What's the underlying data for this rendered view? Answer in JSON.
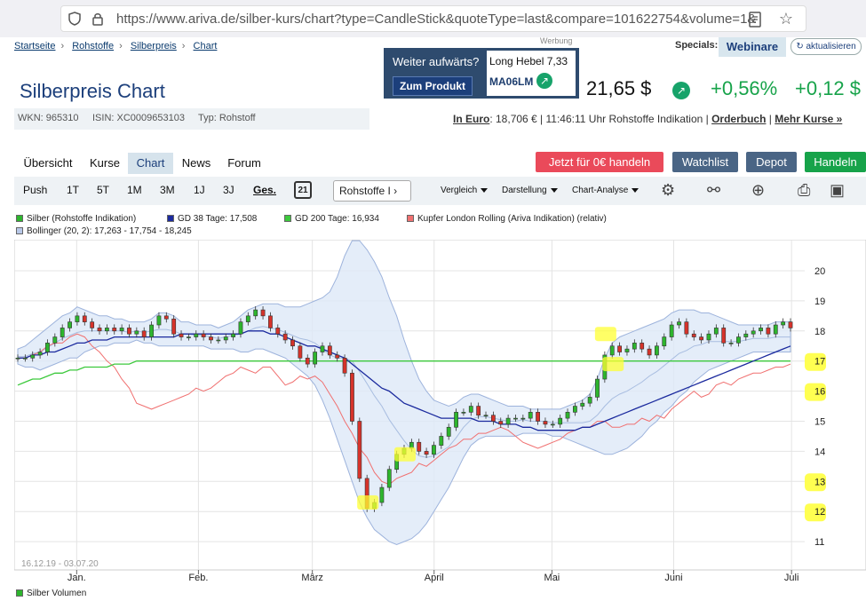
{
  "browser": {
    "url": "https://www.ariva.de/silber-kurs/chart?type=CandleStick&quoteType=last&compare=101622754&volume=1&bands"
  },
  "breadcrumb": [
    "Startseite",
    "Rohstoffe",
    "Silberpreis",
    "Chart"
  ],
  "ad": {
    "label": "Werbung",
    "question": "Weiter aufwärts?",
    "button": "Zum Produkt",
    "product": "Long Hebel 7,33",
    "code": "MA06LM"
  },
  "specials": {
    "label": "Specials:",
    "webinare": "Webinare",
    "refresh": "aktualisieren"
  },
  "header": {
    "title": "Silberpreis Chart",
    "price": "21,65 $",
    "change_pct": "+0,56%",
    "change_abs": "+0,12 $",
    "wkn": "WKN: 965310",
    "isin": "ISIN: XC0009653103",
    "typ": "Typ: Rohstoff",
    "in_euro_label": "In Euro",
    "in_euro_rest": ": 18,706 € | 11:46:11 Uhr Rohstoffe Indikation |",
    "orderbuch": "Orderbuch",
    "mehr_kurse": "Mehr Kurse »"
  },
  "tabs": [
    "Übersicht",
    "Kurse",
    "Chart",
    "News",
    "Forum"
  ],
  "actions": {
    "trade_free": "Jetzt für 0€ handeln",
    "watchlist": "Watchlist",
    "depot": "Depot",
    "handeln": "Handeln"
  },
  "toolbar": {
    "periods": [
      "Push",
      "1T",
      "5T",
      "1M",
      "3M",
      "1J",
      "3J",
      "Ges."
    ],
    "calendar_day": "21",
    "exchange": "Rohstoffe I",
    "vergleich": "Vergleich",
    "darstellung": "Darstellung",
    "analyse": "Chart-Analyse"
  },
  "colors": {
    "brand": "#1c3f7b",
    "up": "#2db52d",
    "down": "#d6332a",
    "gd38": "#1b2a9e",
    "gd200": "#3cc93c",
    "kupfer": "#f07070",
    "bollinger": "#dbe6f7"
  },
  "chart_data": {
    "type": "candlestick",
    "date_range": "16.12.19 - 03.07.20",
    "legend": [
      {
        "label": "Silber (Rohstoffe Indikation)",
        "color": "#2db52d"
      },
      {
        "label": "GD 38 Tage: 17,508",
        "color": "#1b2a9e"
      },
      {
        "label": "GD 200 Tage: 16,934",
        "color": "#3cc93c"
      },
      {
        "label": "Kupfer London Rolling (Ariva Indikation) (relativ)",
        "color": "#f07070"
      },
      {
        "label": "Bollinger (20, 2): 17,263 - 17,754 - 18,245",
        "color": "#b8c8e8"
      }
    ],
    "volume_label": "Silber Volumen",
    "ylim": [
      11,
      20
    ],
    "yticks": [
      20,
      19,
      18,
      17,
      16,
      15,
      14,
      13,
      12,
      11
    ],
    "xticks": [
      {
        "label": "Jan.",
        "day": 16
      },
      {
        "label": "Feb.",
        "day": 47
      },
      {
        "label": "März",
        "day": 76
      },
      {
        "label": "April",
        "day": 107
      },
      {
        "label": "Mai",
        "day": 137
      },
      {
        "label": "Juni",
        "day": 168
      },
      {
        "label": "Juli",
        "day": 198
      }
    ],
    "close": [
      17.1,
      17.1,
      17.2,
      17.3,
      17.6,
      17.8,
      18.1,
      18.3,
      18.5,
      18.3,
      18.1,
      18.0,
      18.1,
      18.0,
      18.1,
      17.9,
      18.0,
      17.8,
      18.2,
      18.5,
      18.4,
      17.9,
      17.8,
      17.8,
      17.9,
      17.8,
      17.7,
      17.7,
      17.8,
      17.9,
      18.3,
      18.5,
      18.7,
      18.5,
      18.1,
      17.9,
      17.7,
      17.5,
      17.1,
      16.9,
      17.3,
      17.5,
      17.2,
      17.1,
      16.6,
      15.0,
      13.1,
      12.1,
      12.3,
      12.8,
      13.4,
      13.9,
      14.1,
      14.3,
      14.0,
      13.9,
      14.2,
      14.5,
      14.8,
      15.3,
      15.3,
      15.5,
      15.2,
      15.2,
      15.0,
      14.9,
      15.1,
      15.1,
      15.1,
      15.3,
      15.0,
      14.9,
      14.9,
      15.1,
      15.3,
      15.5,
      15.6,
      15.8,
      16.4,
      17.2,
      17.5,
      17.3,
      17.4,
      17.6,
      17.4,
      17.2,
      17.5,
      17.8,
      18.2,
      18.3,
      17.9,
      17.8,
      17.7,
      17.9,
      18.1,
      17.6,
      17.6,
      17.8,
      17.9,
      18.0,
      18.1,
      17.9,
      18.2,
      18.3,
      18.1
    ],
    "kupfer": [
      17.1,
      17.1,
      17.2,
      17.3,
      17.5,
      17.6,
      17.6,
      17.8,
      17.9,
      17.8,
      17.5,
      17.3,
      17.0,
      16.8,
      16.4,
      16.1,
      15.6,
      15.5,
      15.4,
      15.5,
      15.6,
      15.7,
      15.8,
      15.9,
      16.1,
      16.0,
      16.1,
      16.3,
      16.5,
      16.6,
      16.8,
      16.7,
      16.6,
      16.8,
      16.8,
      16.5,
      16.2,
      16.3,
      16.5,
      16.4,
      16.5,
      16.3,
      15.9,
      15.5,
      15.0,
      14.6,
      14.1,
      13.8,
      13.3,
      13.0,
      12.9,
      13.1,
      13.2,
      13.3,
      13.6,
      13.5,
      13.7,
      13.9,
      14.1,
      14.2,
      14.4,
      14.4,
      14.6,
      14.6,
      14.7,
      14.8,
      14.7,
      14.5,
      14.3,
      14.2,
      14.1,
      14.2,
      14.3,
      14.4,
      14.6,
      14.7,
      14.8,
      14.8,
      15.0,
      15.0,
      14.8,
      14.8,
      14.9,
      14.9,
      15.1,
      15.0,
      15.2,
      15.1,
      15.4,
      15.6,
      15.8,
      16.0,
      15.8,
      15.9,
      16.2,
      16.3,
      16.2,
      16.4,
      16.5,
      16.6,
      16.6,
      16.7,
      16.8,
      16.8,
      16.9
    ],
    "gd38": [
      17.1,
      17.1,
      17.2,
      17.2,
      17.3,
      17.3,
      17.4,
      17.5,
      17.6,
      17.6,
      17.7,
      17.7,
      17.7,
      17.8,
      17.8,
      17.8,
      17.8,
      17.8,
      17.8,
      17.8,
      17.8,
      17.8,
      17.9,
      17.9,
      17.9,
      17.9,
      17.9,
      17.9,
      17.9,
      17.9,
      17.9,
      18.0,
      18.0,
      18.0,
      17.9,
      17.9,
      17.8,
      17.7,
      17.6,
      17.5,
      17.5,
      17.4,
      17.3,
      17.2,
      17.1,
      16.9,
      16.7,
      16.5,
      16.3,
      16.1,
      16.0,
      15.8,
      15.6,
      15.5,
      15.4,
      15.3,
      15.2,
      15.1,
      15.1,
      15.1,
      15.1,
      15.1,
      15.0,
      15.0,
      15.0,
      14.9,
      14.9,
      14.9,
      14.8,
      14.8,
      14.7,
      14.7,
      14.7,
      14.7,
      14.7,
      14.7,
      14.8,
      14.8,
      14.9,
      15.0,
      15.1,
      15.2,
      15.3,
      15.4,
      15.5,
      15.6,
      15.7,
      15.8,
      15.9,
      16.0,
      16.1,
      16.2,
      16.3,
      16.4,
      16.5,
      16.6,
      16.7,
      16.8,
      16.9,
      17.0,
      17.1,
      17.2,
      17.3,
      17.4,
      17.5
    ],
    "gd200": [
      16.2,
      16.3,
      16.4,
      16.4,
      16.5,
      16.6,
      16.6,
      16.7,
      16.7,
      16.8,
      16.8,
      16.8,
      16.8,
      16.9,
      16.9,
      16.9,
      17.0,
      17.0,
      17.0,
      17.0,
      17.0,
      17.0,
      17.0,
      17.0,
      17.0,
      17.0,
      17.0,
      17.0,
      17.0,
      17.0,
      17.0,
      17.0,
      17.0,
      17.0,
      17.0,
      17.0,
      17.0,
      17.0,
      17.0,
      17.0,
      17.0,
      17.0,
      17.0,
      17.0,
      17.0,
      17.0,
      17.0,
      17.0,
      17.0,
      17.0,
      17.0,
      17.0,
      17.0,
      17.0,
      17.0,
      17.0,
      17.0,
      17.0,
      17.0,
      17.0,
      17.0,
      17.0,
      17.0,
      17.0,
      17.0,
      17.0,
      17.0,
      17.0,
      17.0,
      17.0,
      17.0,
      17.0,
      17.0,
      17.0,
      17.0,
      17.0,
      17.0,
      17.0,
      17.0,
      17.0,
      17.0,
      17.0,
      17.0,
      17.0,
      17.0,
      17.0,
      17.0,
      17.0,
      17.0,
      17.0,
      17.0,
      17.0,
      17.0,
      17.0,
      17.0,
      17.0,
      17.0,
      17.0,
      17.0,
      17.0,
      17.0,
      17.0,
      17.0,
      17.0,
      17.0
    ],
    "boll_upper": [
      17.4,
      17.5,
      17.7,
      17.9,
      18.1,
      18.3,
      18.5,
      18.6,
      18.8,
      18.7,
      18.6,
      18.5,
      18.5,
      18.4,
      18.4,
      18.3,
      18.3,
      18.3,
      18.4,
      18.6,
      18.6,
      18.5,
      18.3,
      18.3,
      18.2,
      18.2,
      18.2,
      18.1,
      18.2,
      18.3,
      18.5,
      18.7,
      18.8,
      18.9,
      18.9,
      18.9,
      18.8,
      18.8,
      18.8,
      18.9,
      19.0,
      19.1,
      19.3,
      19.8,
      20.5,
      21.0,
      21.0,
      20.7,
      20.3,
      19.8,
      19.1,
      18.5,
      17.7,
      17.0,
      16.4,
      16.0,
      15.7,
      15.6,
      15.5,
      15.6,
      15.8,
      15.9,
      15.9,
      15.8,
      15.7,
      15.6,
      15.5,
      15.5,
      15.5,
      15.4,
      15.4,
      15.4,
      15.4,
      15.4,
      15.5,
      15.6,
      15.7,
      15.9,
      16.4,
      17.1,
      17.6,
      17.8,
      17.9,
      18.0,
      18.1,
      18.2,
      18.3,
      18.4,
      18.6,
      18.7,
      18.7,
      18.7,
      18.6,
      18.6,
      18.5,
      18.4,
      18.3,
      18.2,
      18.2,
      18.2,
      18.2,
      18.2,
      18.3,
      18.3,
      18.3
    ],
    "boll_lower": [
      16.9,
      16.8,
      16.8,
      16.7,
      16.8,
      16.9,
      17.0,
      17.1,
      17.1,
      17.3,
      17.4,
      17.5,
      17.5,
      17.6,
      17.6,
      17.6,
      17.7,
      17.6,
      17.6,
      17.5,
      17.5,
      17.5,
      17.5,
      17.5,
      17.5,
      17.5,
      17.4,
      17.4,
      17.4,
      17.4,
      17.3,
      17.3,
      17.4,
      17.4,
      17.3,
      17.2,
      17.1,
      16.9,
      16.7,
      16.5,
      16.2,
      15.7,
      15.1,
      14.4,
      13.7,
      13.0,
      12.3,
      11.8,
      11.4,
      11.2,
      11.0,
      10.9,
      11.0,
      11.1,
      11.3,
      11.6,
      12.0,
      12.4,
      12.8,
      13.3,
      13.8,
      14.2,
      14.4,
      14.5,
      14.5,
      14.5,
      14.5,
      14.5,
      14.6,
      14.6,
      14.6,
      14.6,
      14.5,
      14.5,
      14.4,
      14.3,
      14.2,
      14.1,
      14.0,
      13.9,
      13.9,
      14.0,
      14.1,
      14.3,
      14.5,
      14.8,
      15.0,
      15.3,
      15.5,
      15.8,
      16.0,
      16.3,
      16.5,
      16.7,
      16.8,
      16.9,
      17.0,
      17.1,
      17.2,
      17.3,
      17.3,
      17.3,
      17.3,
      17.3,
      17.3
    ],
    "highlights": [
      {
        "label": "17",
        "value": 17
      },
      {
        "label": "16",
        "value": 16
      },
      {
        "label": "13",
        "value": 13
      },
      {
        "label": "12",
        "value": 12
      }
    ]
  }
}
